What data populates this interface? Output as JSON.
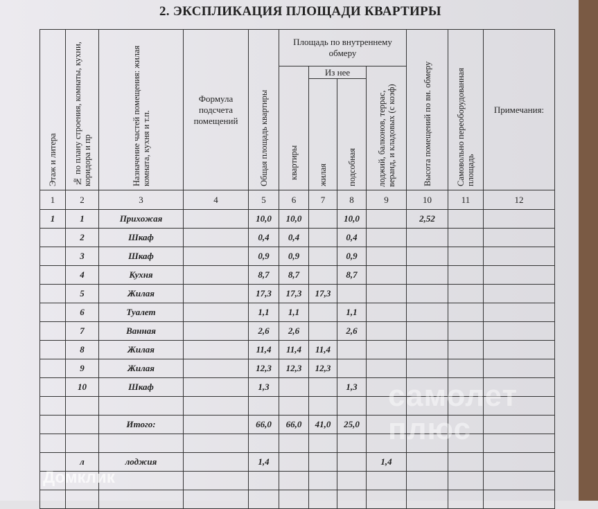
{
  "title": "2. ЭКСПЛИКАЦИЯ ПЛОЩАДИ КВАРТИРЫ",
  "watermarks": [
    "самолет плюс",
    "Домклик"
  ],
  "headers": {
    "c1": "Этаж и литера",
    "c2": "№ по плану строения, комнаты, кухни, коридора и пр",
    "c3": "Назначение частей помещения: жилая комната, кухня и т.п.",
    "c4": "Формула подсчета помещений",
    "c5": "Общая площадь квартиры",
    "group": "Площадь по внутреннему обмеру",
    "c6": "квартиры",
    "sub": "Из нее",
    "c7": "жилая",
    "c8": "подсобная",
    "c9": "лоджий, балконов, террас, веранд, и кладовых (с коэф)",
    "c10": "Высота помещений по вн. обмеру",
    "c11": "Самовольно переоборудованная площадь",
    "c12": "Примечания:"
  },
  "column_numbers": [
    "1",
    "2",
    "3",
    "4",
    "5",
    "6",
    "7",
    "8",
    "9",
    "10",
    "11",
    "12"
  ],
  "rows": [
    [
      "1",
      "1",
      "Прихожая",
      "",
      "10,0",
      "10,0",
      "",
      "10,0",
      "",
      "2,52",
      "",
      ""
    ],
    [
      "",
      "2",
      "Шкаф",
      "",
      "0,4",
      "0,4",
      "",
      "0,4",
      "",
      "",
      "",
      ""
    ],
    [
      "",
      "3",
      "Шкаф",
      "",
      "0,9",
      "0,9",
      "",
      "0,9",
      "",
      "",
      "",
      ""
    ],
    [
      "",
      "4",
      "Кухня",
      "",
      "8,7",
      "8,7",
      "",
      "8,7",
      "",
      "",
      "",
      ""
    ],
    [
      "",
      "5",
      "Жилая",
      "",
      "17,3",
      "17,3",
      "17,3",
      "",
      "",
      "",
      "",
      ""
    ],
    [
      "",
      "6",
      "Туалет",
      "",
      "1,1",
      "1,1",
      "",
      "1,1",
      "",
      "",
      "",
      ""
    ],
    [
      "",
      "7",
      "Ванная",
      "",
      "2,6",
      "2,6",
      "",
      "2,6",
      "",
      "",
      "",
      ""
    ],
    [
      "",
      "8",
      "Жилая",
      "",
      "11,4",
      "11,4",
      "11,4",
      "",
      "",
      "",
      "",
      ""
    ],
    [
      "",
      "9",
      "Жилая",
      "",
      "12,3",
      "12,3",
      "12,3",
      "",
      "",
      "",
      "",
      ""
    ],
    [
      "",
      "10",
      "Шкаф",
      "",
      "1,3",
      "",
      "",
      "1,3",
      "",
      "",
      "",
      ""
    ],
    [
      "",
      "",
      "",
      "",
      "",
      "",
      "",
      "",
      "",
      "",
      "",
      ""
    ],
    [
      "",
      "",
      "Итого:",
      "",
      "66,0",
      "66,0",
      "41,0",
      "25,0",
      "",
      "",
      "",
      ""
    ],
    [
      "",
      "",
      "",
      "",
      "",
      "",
      "",
      "",
      "",
      "",
      "",
      ""
    ],
    [
      "",
      "л",
      "лоджия",
      "",
      "1,4",
      "",
      "",
      "",
      "1,4",
      "",
      "",
      ""
    ],
    [
      "",
      "",
      "",
      "",
      "",
      "",
      "",
      "",
      "",
      "",
      "",
      ""
    ],
    [
      "",
      "",
      "",
      "",
      "",
      "",
      "",
      "",
      "",
      "",
      "",
      ""
    ]
  ]
}
